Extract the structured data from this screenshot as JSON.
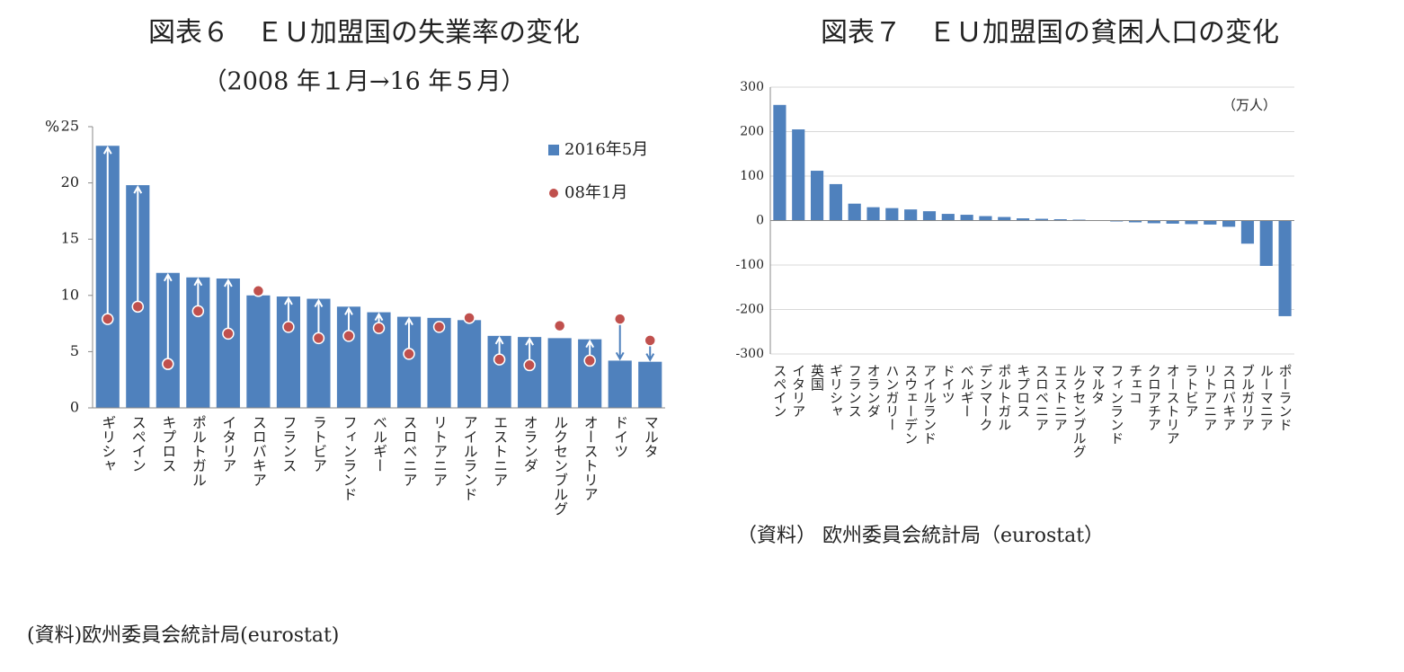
{
  "chart_data": [
    {
      "type": "bar",
      "title": "図表６　ＥＵ加盟国の失業率の変化",
      "subtitle": "（2008 年１月→16 年５月）",
      "y_unit": "%",
      "categories": [
        "ギリシャ",
        "スペイン",
        "キプロス",
        "ポルトガル",
        "イタリア",
        "スロバキア",
        "フランス",
        "ラトビア",
        "フィンランド",
        "ベルギー",
        "スロベニア",
        "リトアニア",
        "アイルランド",
        "エストニア",
        "オランダ",
        "ルクセンブルグ",
        "オーストリア",
        "ドイツ",
        "マルタ"
      ],
      "series": [
        {
          "name": "2016年5月",
          "type": "bar",
          "color": "#4f81bd",
          "values": [
            23.3,
            19.8,
            12.0,
            11.6,
            11.5,
            10.0,
            9.9,
            9.7,
            9.0,
            8.5,
            8.1,
            8.0,
            7.8,
            6.4,
            6.3,
            6.2,
            6.1,
            4.2,
            4.1
          ]
        },
        {
          "name": "08年1月",
          "type": "scatter",
          "color": "#c0504d",
          "values": [
            7.9,
            9.0,
            3.9,
            8.6,
            6.6,
            10.4,
            7.2,
            6.2,
            6.4,
            7.1,
            4.8,
            7.2,
            8.0,
            4.3,
            3.8,
            7.3,
            4.2,
            7.9,
            6.0
          ]
        }
      ],
      "arrows": true,
      "grid": false,
      "ylim": [
        0,
        25
      ],
      "yticks": [
        0,
        5,
        10,
        15,
        20,
        25
      ],
      "source": "(資料)欧州委員会統計局(eurostat)"
    },
    {
      "type": "bar",
      "title": "図表７　ＥＵ加盟国の貧困人口の変化",
      "unit_label": "（万人）",
      "categories": [
        "スペイン",
        "イタリア",
        "英国",
        "ギリシャ",
        "フランス",
        "オランダ",
        "ハンガリー",
        "スウェーデン",
        "アイルランド",
        "ドイツ",
        "ベルギー",
        "デンマーク",
        "ポルトガル",
        "キプロス",
        "スロベニア",
        "エストニア",
        "ルクセンブルグ",
        "マルタ",
        "フィンランド",
        "チェコ",
        "クロアチア",
        "オーストリア",
        "ラトビア",
        "リトアニア",
        "スロバキア",
        "ブルガリア",
        "ルーマニア",
        "ポーランド"
      ],
      "series": [
        {
          "name": null,
          "type": "bar",
          "color": "#4f81bd",
          "values": [
            260,
            205,
            112,
            82,
            38,
            30,
            28,
            25,
            21,
            15,
            13,
            10,
            8,
            5,
            4,
            3,
            2,
            1,
            -2,
            -4,
            -6,
            -7,
            -8,
            -9,
            -14,
            -52,
            -102,
            -215
          ]
        }
      ],
      "grid": true,
      "ylim": [
        -300,
        300
      ],
      "yticks": [
        -300,
        -200,
        -100,
        0,
        100,
        200,
        300
      ],
      "source": "（資料） 欧州委員会統計局（eurostat）"
    }
  ]
}
